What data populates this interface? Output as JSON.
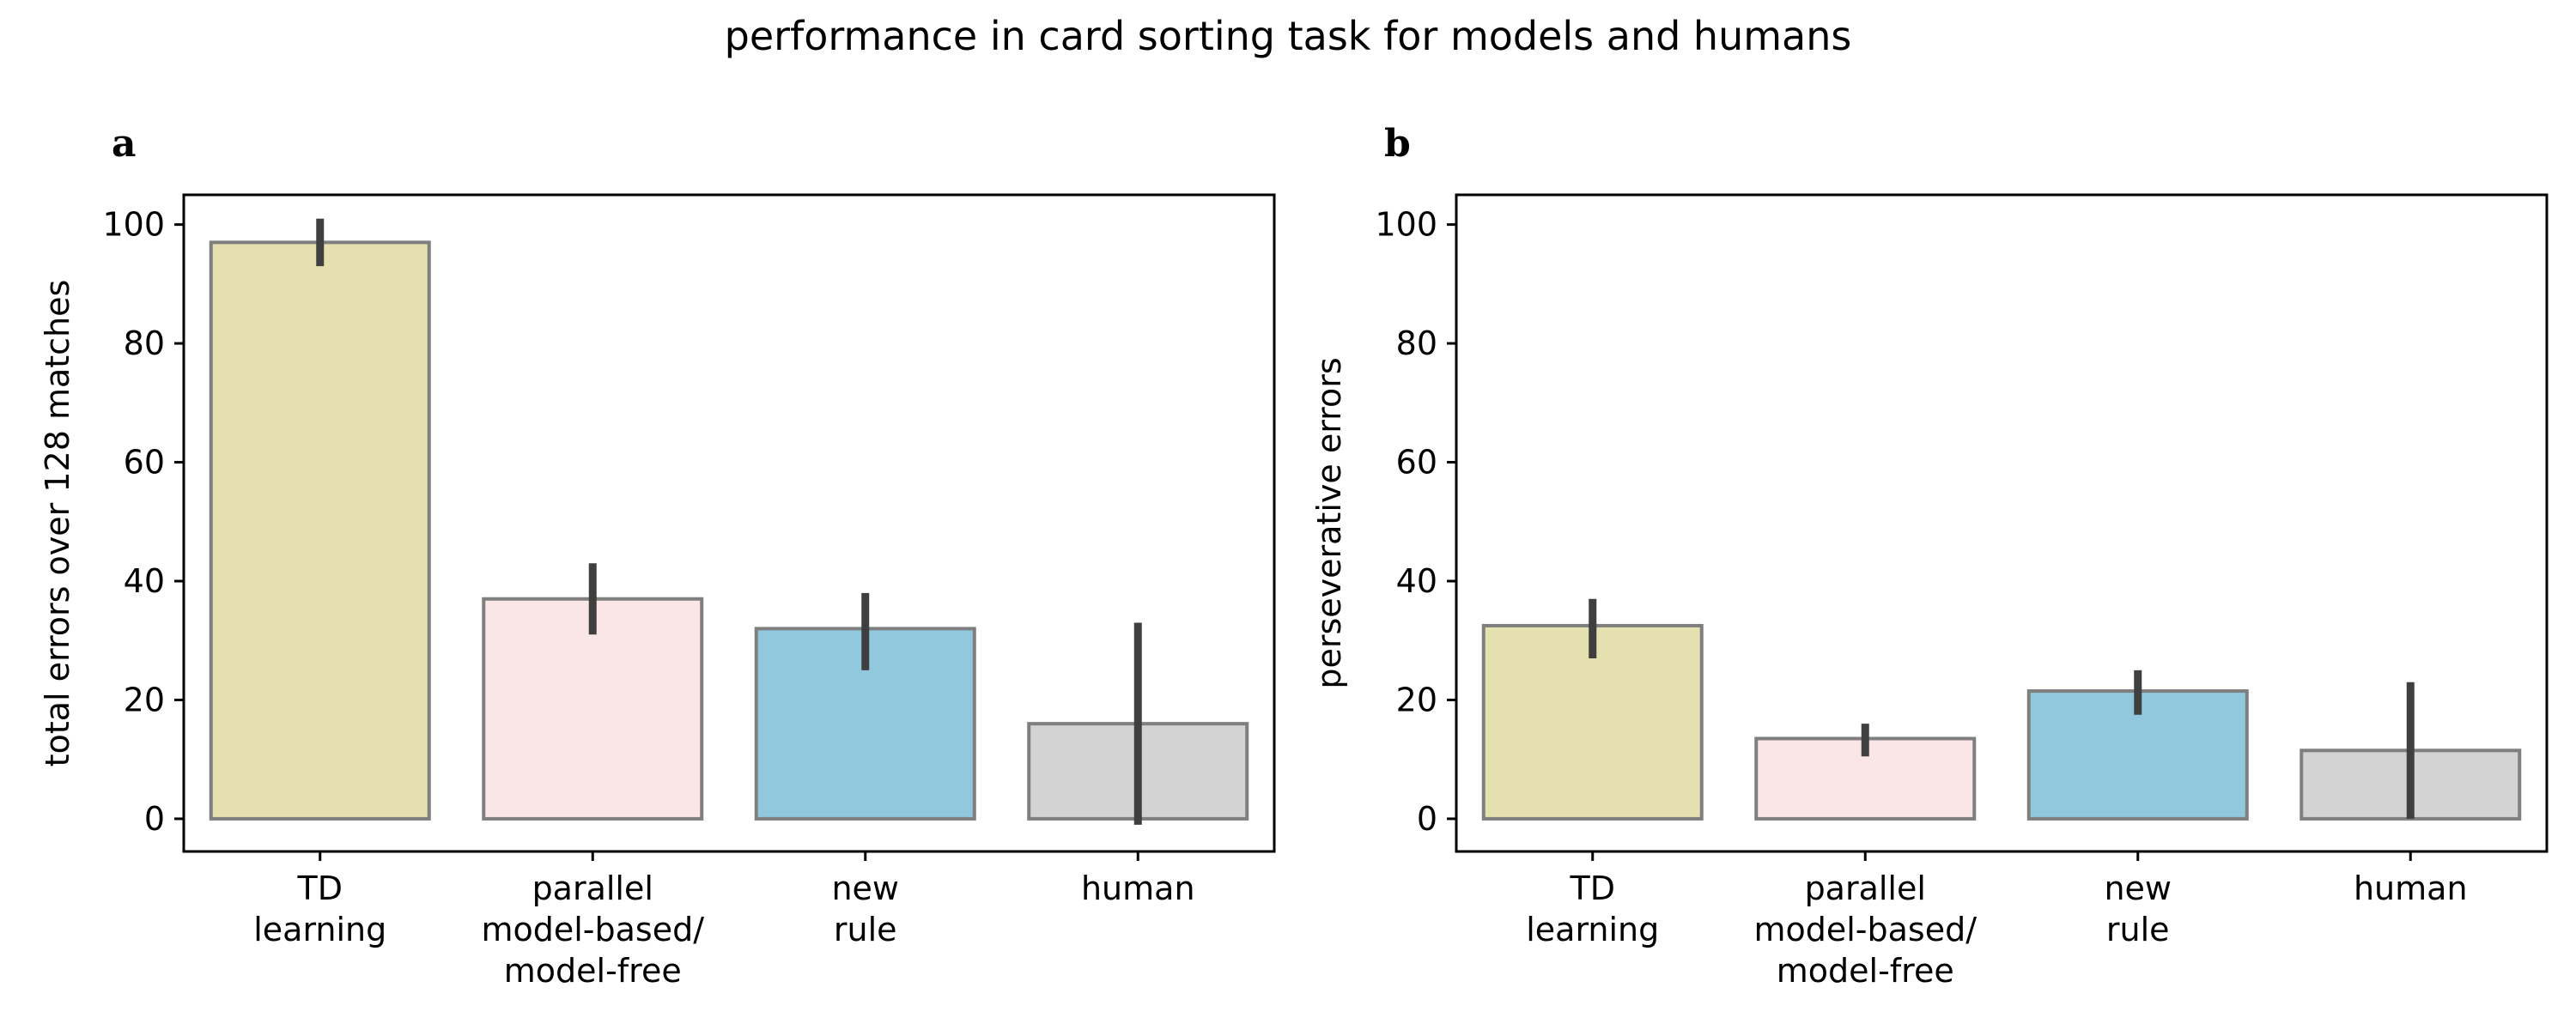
{
  "figure": {
    "title": "performance in card sorting task for models and humans"
  },
  "chart_data": [
    {
      "type": "bar",
      "panel_label": "a",
      "title": "",
      "xlabel": "",
      "ylabel": "total errors over 128 matches",
      "categories": [
        [
          "TD",
          "learning"
        ],
        [
          "parallel",
          "model-based/",
          "model-free"
        ],
        [
          "new",
          "rule"
        ],
        [
          "human"
        ]
      ],
      "values": [
        97,
        37,
        32,
        16
      ],
      "error_low": [
        93,
        31,
        25,
        -1
      ],
      "error_high": [
        101,
        43,
        38,
        33
      ],
      "colors": [
        "#e4e0b0",
        "#fae6e6",
        "#92c8de",
        "#d3d3d3"
      ],
      "ylim": [
        -5.5,
        105
      ],
      "yticks": [
        0,
        20,
        40,
        60,
        80,
        100
      ],
      "grid": false
    },
    {
      "type": "bar",
      "panel_label": "b",
      "title": "",
      "xlabel": "",
      "ylabel": "perseverative errors",
      "categories": [
        [
          "TD",
          "learning"
        ],
        [
          "parallel",
          "model-based/",
          "model-free"
        ],
        [
          "new",
          "rule"
        ],
        [
          "human"
        ]
      ],
      "values": [
        32.5,
        13.5,
        21.5,
        11.5
      ],
      "error_low": [
        27,
        10.5,
        17.5,
        0
      ],
      "error_high": [
        37,
        16,
        25,
        23
      ],
      "colors": [
        "#e4e0b0",
        "#fae6e6",
        "#92c8de",
        "#d3d3d3"
      ],
      "ylim": [
        -5.5,
        105
      ],
      "yticks": [
        0,
        20,
        40,
        60,
        80,
        100
      ],
      "grid": false
    }
  ]
}
